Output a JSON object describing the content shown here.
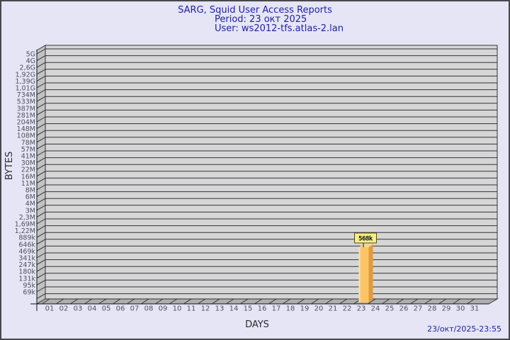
{
  "window": {
    "bg": "#e5e5f6",
    "border_color": "#47474d"
  },
  "header": {
    "title": "SARG, Squid User Access Reports",
    "period": "Period: 23 окт 2025",
    "user": "User: ws2012-tfs.atlas-2.lan"
  },
  "footer": {
    "timestamp": "23/окт/2025-23:55"
  },
  "chart_data": {
    "type": "bar",
    "title": "SARG, Squid User Access Reports",
    "subtitle_lines": [
      "Period: 23 окт 2025",
      "User: ws2012-tfs.atlas-2.lan"
    ],
    "xlabel": "DAYS",
    "ylabel": "BYTES",
    "x_tick_labels": [
      "01",
      "02",
      "03",
      "04",
      "05",
      "06",
      "07",
      "08",
      "09",
      "10",
      "11",
      "12",
      "13",
      "14",
      "15",
      "16",
      "17",
      "18",
      "19",
      "20",
      "21",
      "22",
      "23",
      "24",
      "25",
      "26",
      "27",
      "28",
      "29",
      "30",
      "31"
    ],
    "y_tick_labels": [
      "5G",
      "4G",
      "2,6G",
      "1,92G",
      "1,39G",
      "1,01G",
      "734M",
      "533M",
      "387M",
      "281M",
      "204M",
      "148M",
      "108M",
      "78M",
      "57M",
      "41M",
      "30M",
      "22M",
      "16M",
      "11M",
      "8M",
      "6M",
      "4M",
      "3M",
      "2,3M",
      "1,69M",
      "1,22M",
      "889k",
      "646k",
      "469k",
      "341k",
      "247k",
      "180k",
      "131k",
      "95k",
      "69k"
    ],
    "y_scale": "logarithmic-custom",
    "ylim": [
      "69k",
      "5G"
    ],
    "grid": "horizontal",
    "legend": "none",
    "series": [
      {
        "name": "bytes-per-day",
        "points": [
          {
            "day": "23",
            "label": "568k",
            "value_bytes": 568000
          }
        ]
      }
    ],
    "colors": {
      "bar_front": "#fbc566",
      "bar_side": "#dd9c40",
      "bar_top": "#fdd387",
      "bar_highlight": "#fee2a6",
      "annotation_fill": "#f4ee86",
      "annotation_border": "#55500a",
      "plot_face": "#d6d6d6",
      "plot_wall": "#c2c2c2",
      "plot_floor": "#aeaeae",
      "grid_line": "#333338",
      "title_color": "#2121a0",
      "tick_color": "#50505a"
    }
  }
}
